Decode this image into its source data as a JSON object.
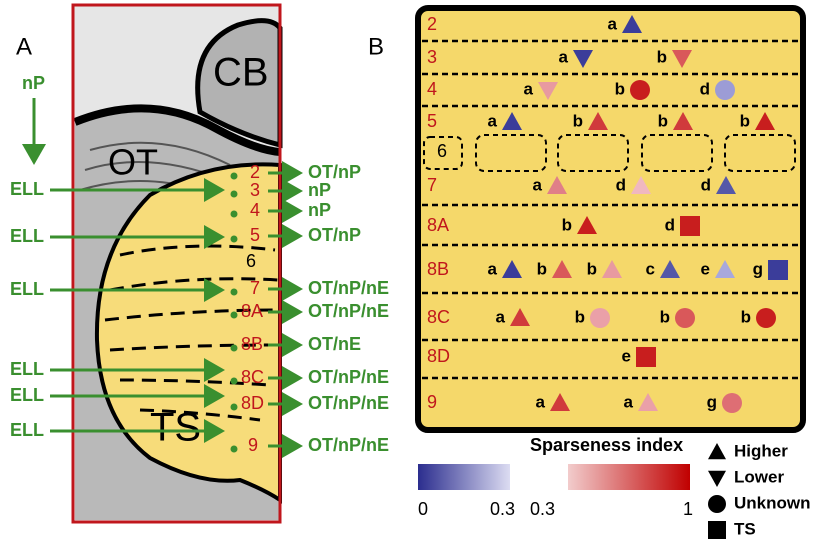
{
  "panel_a": {
    "label": "A",
    "regions": {
      "cb": "CB",
      "ot": "OT",
      "ts": "TS"
    },
    "top_input": "nP",
    "inputs": [
      "ELL",
      "ELL",
      "ELL",
      "ELL",
      "ELL",
      "ELL"
    ],
    "layers": [
      {
        "label": "2",
        "output": "OT/nP"
      },
      {
        "label": "3",
        "output": "nP"
      },
      {
        "label": "4",
        "output": "nP"
      },
      {
        "label": "5",
        "output": "OT/nP"
      },
      {
        "label": "6"
      },
      {
        "label": "7",
        "output": "OT/nP/nE"
      },
      {
        "label": "8A",
        "output": "OT/nP/nE"
      },
      {
        "label": "8B",
        "output": "OT/nE"
      },
      {
        "label": "8C",
        "output": "OT/nP/nE"
      },
      {
        "label": "8D",
        "output": "OT/nP/nE"
      },
      {
        "label": "9",
        "output": "OT/nP/nE"
      }
    ]
  },
  "panel_b": {
    "label": "B",
    "rows": [
      {
        "label": "2",
        "cells": [
          {
            "letter": "a",
            "shape": "triangle-up",
            "color": "#3b3d9a"
          }
        ]
      },
      {
        "label": "3",
        "cells": [
          {
            "letter": "a",
            "shape": "triangle-down",
            "color": "#3b3d9a"
          },
          {
            "letter": "b",
            "shape": "triangle-down",
            "color": "#d9585a"
          }
        ]
      },
      {
        "label": "4",
        "cells": [
          {
            "letter": "a",
            "shape": "triangle-down",
            "color": "#e89aa0"
          },
          {
            "letter": "b",
            "shape": "circle",
            "color": "#c81e1e"
          },
          {
            "letter": "d",
            "shape": "circle",
            "color": "#9c9cd6"
          }
        ]
      },
      {
        "label": "5",
        "cells": [
          {
            "letter": "a",
            "shape": "triangle-up",
            "color": "#3b3d9a"
          },
          {
            "letter": "b",
            "shape": "triangle-up",
            "color": "#d03a3c"
          },
          {
            "letter": "b",
            "shape": "triangle-up",
            "color": "#d03a3c"
          },
          {
            "letter": "b",
            "shape": "triangle-up",
            "color": "#c81e1e"
          }
        ]
      },
      {
        "label": "6",
        "cells": []
      },
      {
        "label": "7",
        "cells": [
          {
            "letter": "a",
            "shape": "triangle-up",
            "color": "#e07f88"
          },
          {
            "letter": "d",
            "shape": "triangle-up",
            "color": "#f0b8c0"
          },
          {
            "letter": "d",
            "shape": "triangle-up",
            "color": "#5558a8"
          }
        ]
      },
      {
        "label": "8A",
        "cells": [
          {
            "letter": "b",
            "shape": "triangle-up",
            "color": "#c81e1e"
          },
          {
            "letter": "d",
            "shape": "square",
            "color": "#c81e1e"
          }
        ]
      },
      {
        "label": "8B",
        "cells": [
          {
            "letter": "a",
            "shape": "triangle-up",
            "color": "#3b3d9a"
          },
          {
            "letter": "b",
            "shape": "triangle-up",
            "color": "#d9585a"
          },
          {
            "letter": "b",
            "shape": "triangle-up",
            "color": "#e89aa0"
          },
          {
            "letter": "c",
            "shape": "triangle-up",
            "color": "#5558a8"
          },
          {
            "letter": "e",
            "shape": "triangle-up",
            "color": "#a8a8dc"
          },
          {
            "letter": "g",
            "shape": "square",
            "color": "#3b3d9a"
          }
        ]
      },
      {
        "label": "8C",
        "cells": [
          {
            "letter": "a",
            "shape": "triangle-up",
            "color": "#d03a3c"
          },
          {
            "letter": "b",
            "shape": "circle",
            "color": "#eaa0a8"
          },
          {
            "letter": "b",
            "shape": "circle",
            "color": "#d9585a"
          },
          {
            "letter": "b",
            "shape": "circle",
            "color": "#c81e1e"
          }
        ]
      },
      {
        "label": "8D",
        "cells": [
          {
            "letter": "e",
            "shape": "square",
            "color": "#c81e1e"
          }
        ]
      },
      {
        "label": "9",
        "cells": [
          {
            "letter": "a",
            "shape": "triangle-up",
            "color": "#d03a3c"
          },
          {
            "letter": "a",
            "shape": "triangle-up",
            "color": "#eaa0a8"
          },
          {
            "letter": "g",
            "shape": "circle",
            "color": "#de6e74"
          }
        ]
      }
    ],
    "legend": {
      "title": "Sparseness index",
      "scales": [
        {
          "colors": [
            "#2b2d8e",
            "#dcdcf2"
          ],
          "labels": [
            "0",
            "0.3"
          ]
        },
        {
          "colors": [
            "#f2cccc",
            "#c00000"
          ],
          "labels": [
            "0.3",
            "1"
          ]
        }
      ],
      "shapes": [
        {
          "shape": "triangle-up",
          "label": "Higher"
        },
        {
          "shape": "triangle-down",
          "label": "Lower"
        },
        {
          "shape": "circle",
          "label": "Unknown"
        },
        {
          "shape": "square",
          "label": "TS"
        }
      ]
    }
  }
}
